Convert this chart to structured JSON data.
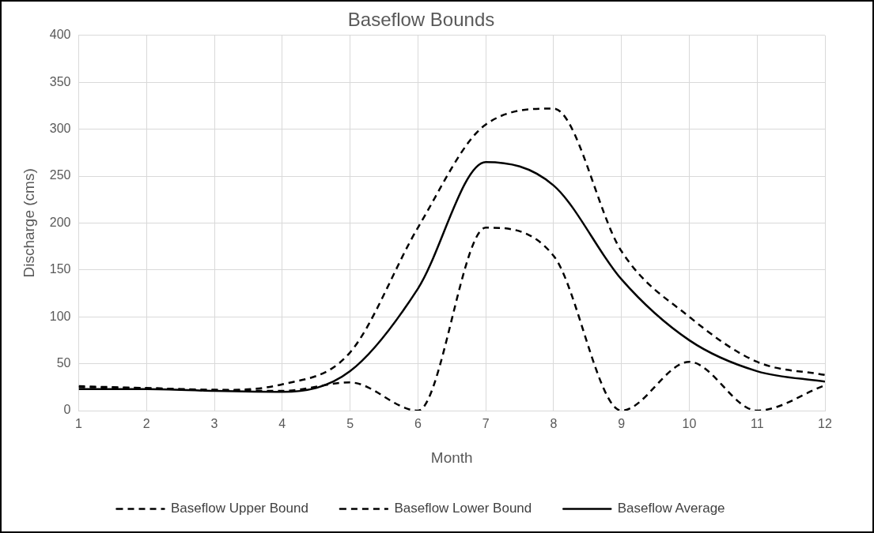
{
  "chart_data": {
    "type": "line",
    "title": "Baseflow Bounds",
    "xlabel": "Month",
    "ylabel": "Discharge (cms)",
    "x": [
      1,
      2,
      3,
      4,
      5,
      6,
      7,
      8,
      9,
      10,
      11,
      12
    ],
    "series": [
      {
        "name": "Baseflow Upper Bound",
        "color": "#000000",
        "line_style": "dashed",
        "values": [
          26,
          24,
          22,
          28,
          62,
          195,
          305,
          322,
          170,
          100,
          52,
          38
        ]
      },
      {
        "name": "Baseflow Lower Bound",
        "color": "#000000",
        "line_style": "dashed",
        "values": [
          25,
          24,
          22,
          21,
          30,
          0,
          195,
          165,
          0,
          52,
          0,
          27
        ]
      },
      {
        "name": "Baseflow Average",
        "color": "#000000",
        "line_style": "solid",
        "values": [
          23,
          23,
          21,
          20,
          42,
          130,
          265,
          240,
          140,
          75,
          42,
          31
        ]
      }
    ],
    "xlim": [
      1,
      12
    ],
    "xticks": [
      1,
      2,
      3,
      4,
      5,
      6,
      7,
      8,
      9,
      10,
      11,
      12
    ],
    "ylim": [
      0,
      400
    ],
    "yticks": [
      0,
      50,
      100,
      150,
      200,
      250,
      300,
      350,
      400
    ],
    "grid": true,
    "legend": "bottom",
    "marker": "none"
  }
}
